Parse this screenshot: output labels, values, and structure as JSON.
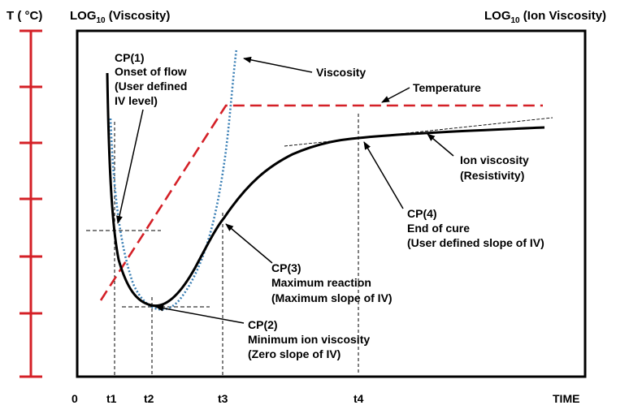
{
  "header": {
    "left_axis_title": "T ( °C)",
    "log_prefix": "LOG",
    "log_sub": "10",
    "viscosity_title": " (Viscosity)",
    "ion_viscosity_title": " (Ion Viscosity)"
  },
  "x_axis": {
    "origin": "0",
    "ticks": [
      "t1",
      "t2",
      "t3",
      "t4"
    ],
    "title": "TIME"
  },
  "annotations": {
    "cp1": [
      "CP(1)",
      "Onset of flow",
      "(User defined",
      " IV level)"
    ],
    "cp2": [
      "CP(2)",
      "Minimum ion viscosity",
      "(Zero slope of IV)"
    ],
    "cp3": [
      "CP(3)",
      "Maximum reaction",
      "(Maximum slope of IV)"
    ],
    "cp4": [
      "CP(4)",
      "End of cure",
      "(User defined slope of IV)"
    ],
    "viscosity": "Viscosity",
    "temperature": "Temperature",
    "ion_viscosity": [
      "Ion viscosity",
      "(Resistivity)"
    ]
  },
  "colors": {
    "temperature": "#d42027",
    "viscosity": "#3a7fb5",
    "ion_viscosity": "#000000"
  }
}
